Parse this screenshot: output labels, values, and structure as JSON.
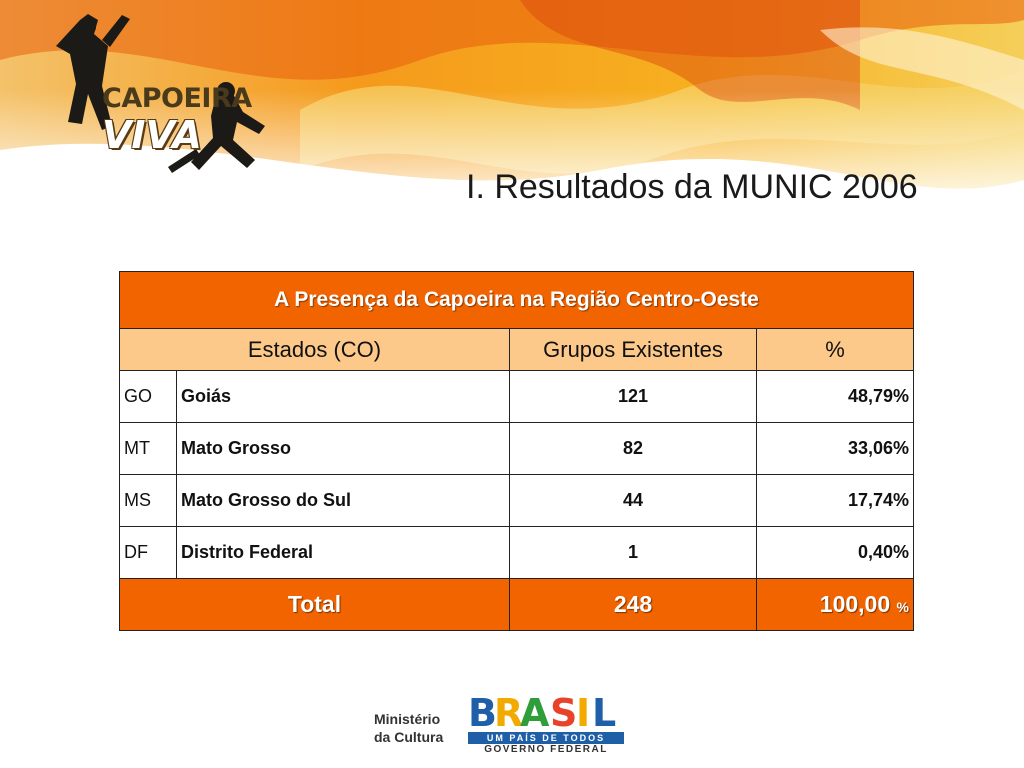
{
  "header": {
    "logo_line1": "CAPOEIRA",
    "logo_line2": "VIVA",
    "title": "I. Resultados da MUNIC 2006"
  },
  "table": {
    "caption": "A Presença da Capoeira na Região Centro-Oeste",
    "columns": [
      "Estados (CO)",
      "Grupos Existentes",
      "%"
    ],
    "rows": [
      {
        "code": "GO",
        "name": "Goiás",
        "groups": "121",
        "pct": "48,79%"
      },
      {
        "code": "MT",
        "name": "Mato Grosso",
        "groups": "82",
        "pct": "33,06%"
      },
      {
        "code": "MS",
        "name": "Mato Grosso do Sul",
        "groups": "44",
        "pct": "17,74%"
      },
      {
        "code": "DF",
        "name": "Distrito Federal",
        "groups": "1",
        "pct": "0,40%"
      }
    ],
    "total": {
      "label": "Total",
      "groups": "248",
      "pct_value": "100,00",
      "pct_sign": "%"
    }
  },
  "footer": {
    "ministry_line1": "Ministério",
    "ministry_line2": "da Cultura",
    "brasil_letters": [
      "B",
      "R",
      "A",
      "S",
      "I",
      "L"
    ],
    "brasil_tagline": "UM PAÍS DE TODOS",
    "brasil_gov": "GOVERNO FEDERAL"
  },
  "colors": {
    "accent_orange": "#f26400",
    "header_tan": "#fcc98a",
    "banner_yellow": "#f7b21a"
  }
}
